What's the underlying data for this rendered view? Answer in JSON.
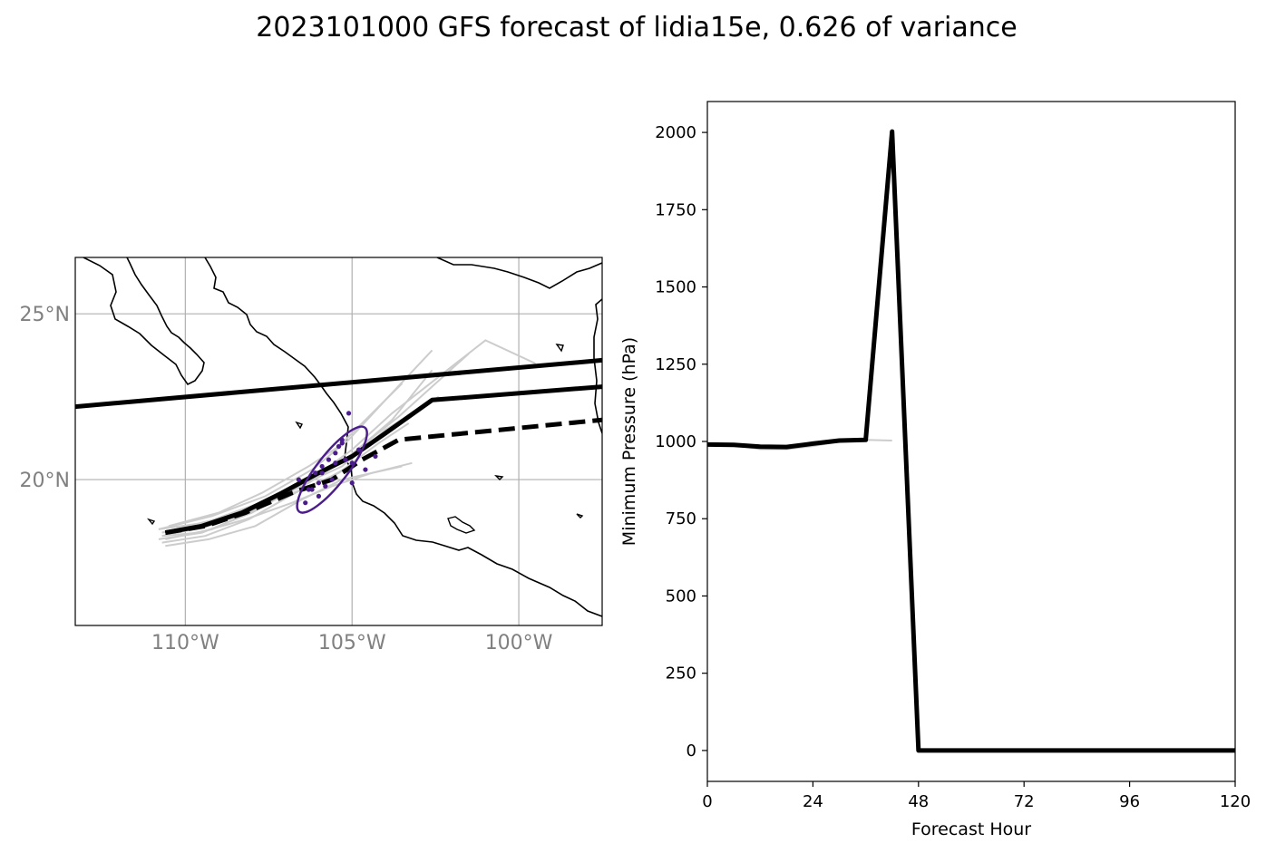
{
  "figure": {
    "title": "2023101000 GFS forecast of lidia15e, 0.626 of variance"
  },
  "chart_data": [
    {
      "type": "map",
      "panel": "track",
      "lon_range": [
        -113.3,
        -97.5
      ],
      "lat_range": [
        15.6,
        26.7
      ],
      "grid": true,
      "lon_ticks": [
        {
          "value": -110,
          "label": "110°W"
        },
        {
          "value": -105,
          "label": "105°W"
        },
        {
          "value": -100,
          "label": "100°W"
        }
      ],
      "lat_ticks": [
        {
          "value": 20,
          "label": "20°N"
        },
        {
          "value": 25,
          "label": "25°N"
        }
      ],
      "series": [
        {
          "style": "solid-thick",
          "color": "#000000",
          "lon": [
            -113.3,
            -97.5
          ],
          "lat": [
            22.2,
            23.6
          ]
        },
        {
          "style": "solid-thick",
          "color": "#000000",
          "lon": [
            -110.6,
            -109.5,
            -108.3,
            -107.1,
            -106.0,
            -105.0,
            -104.0,
            -102.6,
            -97.5
          ],
          "lat": [
            18.4,
            18.6,
            19.0,
            19.6,
            20.2,
            20.7,
            21.4,
            22.4,
            22.8
          ]
        },
        {
          "style": "dashed-thick",
          "color": "#000000",
          "lon": [
            -110.6,
            -109.4,
            -108.2,
            -106.8,
            -105.6,
            -104.7,
            -103.6,
            -102.6,
            -97.5
          ],
          "lat": [
            18.4,
            18.6,
            19.0,
            19.6,
            20.0,
            20.6,
            21.2,
            21.3,
            21.8
          ]
        },
        {
          "style": "ensemble",
          "color": "#cccccc",
          "members": [
            {
              "lon": [
                -110.8,
                -109.2,
                -107.6,
                -106.2,
                -105.1,
                -104.0,
                -102.6
              ],
              "lat": [
                18.5,
                18.9,
                19.5,
                20.3,
                21.2,
                22.4,
                23.9
              ]
            },
            {
              "lon": [
                -110.7,
                -109.1,
                -107.5,
                -106.1,
                -105.0,
                -103.8,
                -101.0,
                -99.5
              ],
              "lat": [
                18.4,
                18.8,
                19.4,
                20.1,
                20.9,
                22.0,
                24.2,
                23.5
              ]
            },
            {
              "lon": [
                -110.7,
                -109.3,
                -107.8,
                -106.3,
                -105.1,
                -103.6,
                -101.5
              ],
              "lat": [
                18.3,
                18.6,
                19.2,
                19.9,
                20.7,
                21.9,
                23.8
              ]
            },
            {
              "lon": [
                -110.6,
                -109.2,
                -107.9,
                -106.4,
                -105.2,
                -103.8,
                -102.6
              ],
              "lat": [
                18.2,
                18.5,
                19.1,
                19.9,
                20.6,
                21.8,
                23.3
              ]
            },
            {
              "lon": [
                -110.8,
                -109.5,
                -108.0,
                -106.6,
                -105.3,
                -104.0,
                -102.4
              ],
              "lat": [
                18.2,
                18.4,
                19.0,
                19.8,
                20.4,
                21.5,
                22.5
              ]
            },
            {
              "lon": [
                -110.7,
                -109.4,
                -108.1,
                -106.7,
                -105.4,
                -104.2,
                -103.3
              ],
              "lat": [
                18.1,
                18.3,
                18.8,
                19.6,
                20.2,
                21.1,
                21.7
              ]
            },
            {
              "lon": [
                -110.6,
                -109.3,
                -107.9,
                -106.5,
                -105.3,
                -103.5
              ],
              "lat": [
                18.0,
                18.2,
                18.6,
                19.4,
                20.0,
                20.4
              ]
            },
            {
              "lon": [
                -110.7,
                -109.6,
                -108.2,
                -106.8,
                -105.6,
                -104.4,
                -103.2
              ],
              "lat": [
                18.3,
                18.4,
                18.8,
                19.3,
                19.8,
                20.2,
                20.5
              ]
            },
            {
              "lon": [
                -110.5,
                -109.0,
                -107.7,
                -106.3,
                -105.4,
                -104.5,
                -103.5
              ],
              "lat": [
                18.6,
                19.0,
                19.6,
                20.4,
                21.0,
                21.9,
                22.9
              ]
            },
            {
              "lon": [
                -110.8,
                -109.4,
                -108.3,
                -107.0,
                -105.8,
                -104.9
              ],
              "lat": [
                18.5,
                18.7,
                19.1,
                19.5,
                20.0,
                20.5
              ]
            }
          ]
        },
        {
          "style": "scatter",
          "color": "#4b1c8c",
          "lon": [
            -105.1,
            -105.3,
            -105.5,
            -105.7,
            -105.9,
            -106.0,
            -106.2,
            -106.4,
            -106.6,
            -105.0,
            -104.8,
            -104.6,
            -105.2,
            -105.6,
            -105.8,
            -106.1,
            -105.4,
            -105.0,
            -104.3,
            -106.3,
            -105.9,
            -105.5,
            -105.3,
            -106.0
          ],
          "lat": [
            22.0,
            21.2,
            20.8,
            20.6,
            20.2,
            19.9,
            19.7,
            19.3,
            20.0,
            20.5,
            20.9,
            20.3,
            20.6,
            20.0,
            19.8,
            20.2,
            21.0,
            19.9,
            20.7,
            19.7,
            20.4,
            20.5,
            21.1,
            19.5
          ]
        }
      ],
      "ellipse": {
        "color": "#4b1c8c",
        "center_lon": -105.6,
        "center_lat": 20.3,
        "major_deg": 1.6,
        "minor_deg": 0.45,
        "angle_deg": 52
      }
    },
    {
      "type": "line",
      "panel": "pressure",
      "xlabel": "Forecast Hour",
      "ylabel": "Minimum Pressure (hPa)",
      "xlim": [
        0,
        120
      ],
      "ylim": [
        -100,
        2100
      ],
      "xticks": [
        0,
        24,
        48,
        72,
        96,
        120
      ],
      "yticks": [
        0,
        250,
        500,
        750,
        1000,
        1250,
        1500,
        1750,
        2000
      ],
      "series": [
        {
          "style": "ensemble",
          "color": "#cccccc",
          "x": [
            0,
            6,
            12,
            18,
            24,
            30,
            36,
            42
          ],
          "y": [
            990,
            988,
            975,
            975,
            985,
            1000,
            1005,
            1003
          ]
        },
        {
          "style": "ensemble",
          "color": "#cccccc",
          "x": [
            0,
            6,
            12,
            18,
            24
          ],
          "y": [
            992,
            990,
            980,
            978,
            990
          ]
        },
        {
          "style": "solid-thick",
          "color": "#000000",
          "x": [
            0,
            6,
            12,
            18,
            24,
            30,
            36,
            42,
            48,
            54,
            60,
            66,
            72,
            78,
            84,
            90,
            96,
            102,
            108,
            114,
            120
          ],
          "y": [
            990,
            989,
            983,
            982,
            993,
            1003,
            1005,
            2003,
            0,
            0,
            0,
            0,
            0,
            0,
            0,
            0,
            0,
            0,
            0,
            0,
            0
          ]
        }
      ]
    }
  ]
}
